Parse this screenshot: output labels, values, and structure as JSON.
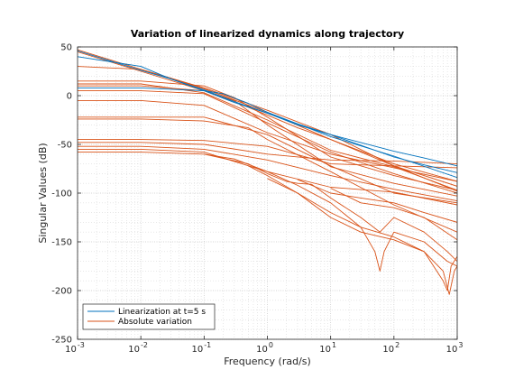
{
  "chart_data": {
    "type": "line",
    "title": "Variation of linearized dynamics along trajectory",
    "xlabel": "Frequency (rad/s)",
    "ylabel": "Singular Values (dB)",
    "xscale": "log",
    "xlim": [
      0.001,
      1000
    ],
    "ylim": [
      -250,
      50
    ],
    "x_ticks": [
      {
        "value": 0.001,
        "base": "10",
        "exp": "-3"
      },
      {
        "value": 0.01,
        "base": "10",
        "exp": "-2"
      },
      {
        "value": 0.1,
        "base": "10",
        "exp": "-1"
      },
      {
        "value": 1,
        "base": "10",
        "exp": "0"
      },
      {
        "value": 10,
        "base": "10",
        "exp": "1"
      },
      {
        "value": 100,
        "base": "10",
        "exp": "2"
      },
      {
        "value": 1000,
        "base": "10",
        "exp": "3"
      }
    ],
    "y_ticks": [
      50,
      0,
      -50,
      -100,
      -150,
      -200,
      -250
    ],
    "grid": true,
    "minor_grid": true,
    "legend_position": "bottom-left",
    "colors": {
      "blue": "#0072BD",
      "orange": "#D95319"
    },
    "series": [
      {
        "name": "Linearization at t=5 s",
        "color": "#0072BD",
        "lines": [
          {
            "x": [
              0.001,
              0.01,
              0.03,
              0.1,
              0.3,
              1,
              3,
              10,
              100,
              300,
              1000
            ],
            "y": [
              46,
              26,
              17,
              6,
              -6,
              -18,
              -29,
              -40,
              -57,
              -64,
              -72
            ]
          },
          {
            "x": [
              0.001,
              0.01,
              0.03,
              0.1,
              0.3,
              1,
              3,
              10,
              100,
              300,
              1000
            ],
            "y": [
              40,
              30,
              17,
              5,
              -7,
              -18,
              -30,
              -40,
              -63,
              -71,
              -79
            ]
          },
          {
            "x": [
              0.001,
              0.01,
              0.1,
              0.2,
              0.5,
              1,
              10,
              100,
              1000
            ],
            "y": [
              8,
              8,
              5,
              2,
              -8,
              -17,
              -42,
              -62,
              -84
            ]
          }
        ]
      },
      {
        "name": "Absolute variation",
        "color": "#D95319",
        "lines": [
          {
            "x": [
              0.001,
              0.01,
              0.1,
              1,
              10,
              100,
              1000
            ],
            "y": [
              47,
              27,
              7,
              -17,
              -45,
              -72,
              -93
            ]
          },
          {
            "x": [
              0.001,
              0.01,
              0.1,
              0.3,
              1,
              3,
              10,
              100,
              1000
            ],
            "y": [
              45,
              25,
              5,
              -6,
              -20,
              -33,
              -45,
              -70,
              -88
            ]
          },
          {
            "x": [
              0.001,
              0.01,
              0.1,
              1,
              10,
              100,
              1000
            ],
            "y": [
              30,
              27,
              8,
              -15,
              -40,
              -72,
              -98
            ]
          },
          {
            "x": [
              0.001,
              0.01,
              0.1,
              0.3,
              1,
              10,
              100,
              1000
            ],
            "y": [
              15,
              15,
              10,
              -2,
              -22,
              -63,
              -82,
              -97
            ]
          },
          {
            "x": [
              0.001,
              0.01,
              0.1,
              1,
              10,
              100,
              1000
            ],
            "y": [
              12,
              12,
              3,
              -25,
              -56,
              -73,
              -97
            ]
          },
          {
            "x": [
              0.001,
              0.01,
              0.1,
              0.3,
              1,
              10,
              100,
              1000
            ],
            "y": [
              10,
              10,
              5,
              -5,
              -30,
              -73,
              -90,
              -103
            ]
          },
          {
            "x": [
              0.001,
              0.01,
              0.1,
              1,
              10,
              100,
              1000
            ],
            "y": [
              5,
              5,
              2,
              -28,
              -58,
              -80,
              -100
            ]
          },
          {
            "x": [
              0.001,
              0.01,
              0.1,
              1,
              10,
              100,
              1000
            ],
            "y": [
              -5,
              -5,
              -10,
              -38,
              -60,
              -74,
              -88
            ]
          },
          {
            "x": [
              0.001,
              0.01,
              0.1,
              1,
              10,
              100,
              1000
            ],
            "y": [
              -22,
              -22,
              -22,
              -40,
              -72,
              -100,
              -110
            ]
          },
          {
            "x": [
              0.001,
              0.01,
              0.1,
              0.5,
              1,
              10,
              100,
              1000
            ],
            "y": [
              -24,
              -24,
              -26,
              -33,
              -45,
              -78,
              -112,
              -140
            ]
          },
          {
            "x": [
              0.001,
              0.01,
              0.1,
              1,
              10,
              100,
              1000
            ],
            "y": [
              -45,
              -45,
              -46,
              -52,
              -70,
              -72,
              -74
            ]
          },
          {
            "x": [
              0.001,
              0.01,
              0.1,
              1,
              10,
              100,
              1000
            ],
            "y": [
              -48,
              -48,
              -50,
              -60,
              -66,
              -67,
              -70
            ]
          },
          {
            "x": [
              0.001,
              0.01,
              0.1,
              1,
              10,
              100,
              1000
            ],
            "y": [
              -52,
              -52,
              -55,
              -66,
              -82,
              -96,
              -108
            ]
          },
          {
            "x": [
              0.001,
              0.01,
              0.1,
              1,
              10,
              100,
              1000
            ],
            "y": [
              -55,
              -55,
              -58,
              -78,
              -94,
              -99,
              -112
            ]
          },
          {
            "x": [
              0.001,
              0.01,
              0.1,
              0.5,
              1,
              2,
              3,
              5,
              10,
              30,
              60,
              100,
              300,
              700,
              1000
            ],
            "y": [
              -58,
              -58,
              -60,
              -70,
              -80,
              -88,
              -90,
              -91,
              -105,
              -125,
              -140,
              -125,
              -140,
              -160,
              -170
            ]
          },
          {
            "x": [
              0.1,
              0.3,
              1,
              3,
              10,
              30,
              50,
              60,
              70,
              100,
              300,
              700,
              1000
            ],
            "y": [
              -60,
              -65,
              -78,
              -92,
              -110,
              -135,
              -160,
              -180,
              -160,
              -140,
              -150,
              -170,
              -175
            ]
          },
          {
            "x": [
              1,
              3,
              10,
              30,
              100,
              300,
              600,
              750,
              900,
              1000
            ],
            "y": [
              -85,
              -100,
              -120,
              -135,
              -145,
              -160,
              -180,
              -204,
              -180,
              -175
            ]
          },
          {
            "x": [
              0.5,
              1,
              3,
              10,
              30,
              100,
              300,
              600,
              700,
              800,
              1000
            ],
            "y": [
              -72,
              -82,
              -100,
              -125,
              -140,
              -148,
              -160,
              -190,
              -200,
              -175,
              -165
            ]
          },
          {
            "x": [
              3,
              10,
              30,
              100,
              300,
              1000
            ],
            "y": [
              -86,
              -100,
              -105,
              -110,
              -120,
              -130
            ]
          },
          {
            "x": [
              10,
              30,
              100,
              300,
              1000
            ],
            "y": [
              -95,
              -110,
              -115,
              -125,
              -148
            ]
          }
        ]
      }
    ]
  }
}
